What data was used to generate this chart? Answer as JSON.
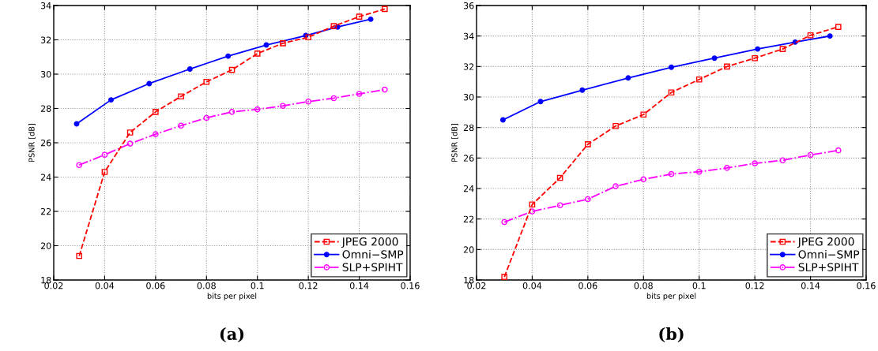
{
  "chart_data": [
    {
      "type": "line",
      "xlabel": "bits per pixel",
      "ylabel": "PSNR [dB]",
      "xlim": [
        0.02,
        0.16
      ],
      "xticks": [
        0.02,
        0.04,
        0.06,
        0.08,
        0.1,
        0.12,
        0.14,
        0.16
      ],
      "ylim": [
        18,
        34
      ],
      "yticks": [
        18,
        20,
        22,
        24,
        26,
        28,
        30,
        32,
        34
      ],
      "grid": true,
      "legend": "bottom right",
      "annotations": [
        "(a)"
      ],
      "series": [
        {
          "name": "JPEG 2000",
          "color": "#ff0000",
          "marker": "square",
          "line_style": "dashed",
          "x": [
            0.03,
            0.04,
            0.05,
            0.06,
            0.07,
            0.08,
            0.09,
            0.1,
            0.11,
            0.12,
            0.13,
            0.14,
            0.15
          ],
          "values": [
            19.4,
            24.3,
            26.6,
            27.8,
            28.7,
            29.55,
            30.25,
            31.2,
            31.8,
            32.15,
            32.8,
            33.35,
            33.8
          ]
        },
        {
          "name": "Omni−SMP",
          "color": "#0000ff",
          "marker": "circle",
          "line_style": "solid",
          "x": [
            0.029,
            0.0425,
            0.0575,
            0.0735,
            0.0885,
            0.1035,
            0.119,
            0.1315,
            0.1445
          ],
          "values": [
            27.1,
            28.5,
            29.45,
            30.3,
            31.05,
            31.7,
            32.25,
            32.75,
            33.2
          ]
        },
        {
          "name": "SLP+SPIHT",
          "color": "#ff00ff",
          "marker": "circle",
          "line_style": "dashdot",
          "x": [
            0.03,
            0.04,
            0.05,
            0.06,
            0.07,
            0.08,
            0.09,
            0.1,
            0.11,
            0.12,
            0.13,
            0.14,
            0.15
          ],
          "values": [
            24.7,
            25.3,
            25.95,
            26.5,
            27.0,
            27.45,
            27.8,
            27.95,
            28.15,
            28.4,
            28.6,
            28.85,
            29.1
          ]
        }
      ]
    },
    {
      "type": "line",
      "xlabel": "bits per pixel",
      "ylabel": "PSNR [dB]",
      "xlim": [
        0.02,
        0.16
      ],
      "xticks": [
        0.02,
        0.04,
        0.06,
        0.08,
        0.1,
        0.12,
        0.14,
        0.16
      ],
      "ylim": [
        18,
        36
      ],
      "yticks": [
        18,
        20,
        22,
        24,
        26,
        28,
        30,
        32,
        34,
        36
      ],
      "grid": true,
      "legend": "bottom right",
      "annotations": [
        "(b)"
      ],
      "series": [
        {
          "name": "JPEG 2000",
          "color": "#ff0000",
          "marker": "square",
          "line_style": "dashed",
          "x": [
            0.03,
            0.04,
            0.05,
            0.06,
            0.07,
            0.08,
            0.09,
            0.1,
            0.11,
            0.12,
            0.13,
            0.14,
            0.15
          ],
          "values": [
            18.2,
            22.95,
            24.7,
            26.9,
            28.1,
            28.85,
            30.3,
            31.15,
            32.0,
            32.55,
            33.15,
            34.05,
            34.6
          ]
        },
        {
          "name": "Omni−SMP",
          "color": "#0000ff",
          "marker": "circle",
          "line_style": "solid",
          "x": [
            0.0295,
            0.043,
            0.058,
            0.0745,
            0.09,
            0.1055,
            0.121,
            0.1345,
            0.147
          ],
          "values": [
            28.5,
            29.7,
            30.45,
            31.25,
            31.95,
            32.55,
            33.15,
            33.6,
            34.0
          ]
        },
        {
          "name": "SLP+SPIHT",
          "color": "#ff00ff",
          "marker": "circle",
          "line_style": "dashdot",
          "x": [
            0.03,
            0.04,
            0.05,
            0.06,
            0.07,
            0.08,
            0.09,
            0.1,
            0.11,
            0.12,
            0.13,
            0.14,
            0.15
          ],
          "values": [
            21.8,
            22.5,
            22.9,
            23.3,
            24.15,
            24.6,
            24.95,
            25.1,
            25.35,
            25.65,
            25.85,
            26.2,
            26.5
          ]
        }
      ]
    }
  ]
}
